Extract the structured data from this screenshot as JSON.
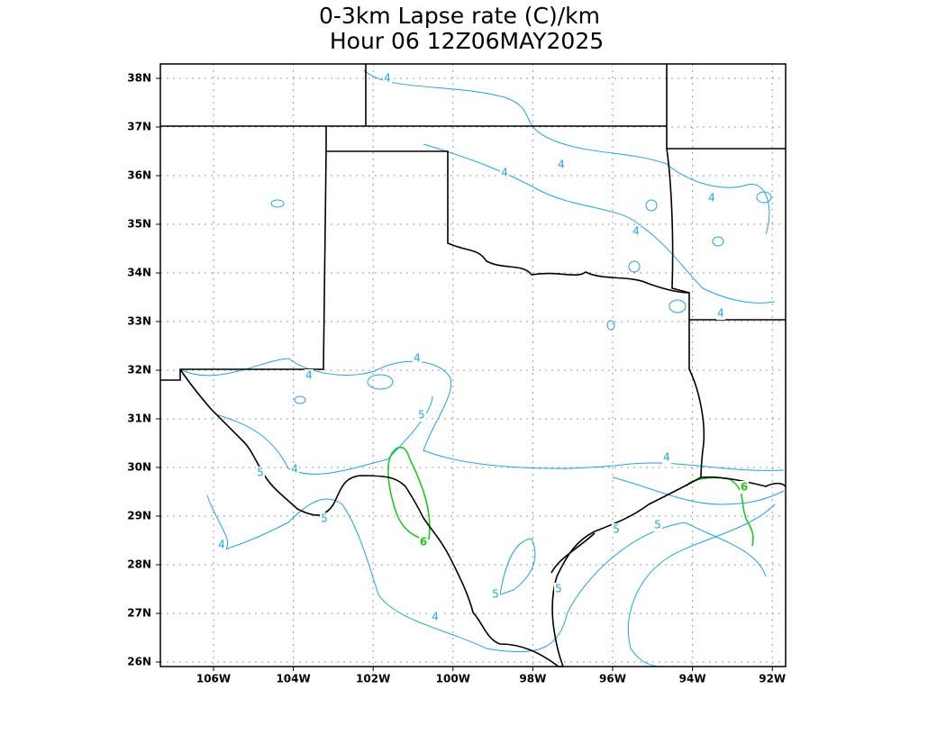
{
  "title": {
    "line1": "0-3km Lapse rate (C)/km",
    "line2": "Hour 06 12Z06MAY2025"
  },
  "latitude_labels": [
    "38N",
    "37N",
    "36N",
    "35N",
    "34N",
    "33N",
    "32N",
    "31N",
    "30N",
    "29N",
    "28N",
    "27N",
    "26N"
  ],
  "longitude_labels": [
    "106W",
    "104W",
    "102W",
    "100W",
    "98W",
    "96W",
    "94W",
    "92W"
  ],
  "contour_labels": [
    "4",
    "4",
    "4",
    "4",
    "4",
    "4",
    "4",
    "4",
    "4",
    "4",
    "4",
    "4",
    "5",
    "5",
    "5",
    "5",
    "5",
    "5",
    "5",
    "6",
    "6"
  ]
}
